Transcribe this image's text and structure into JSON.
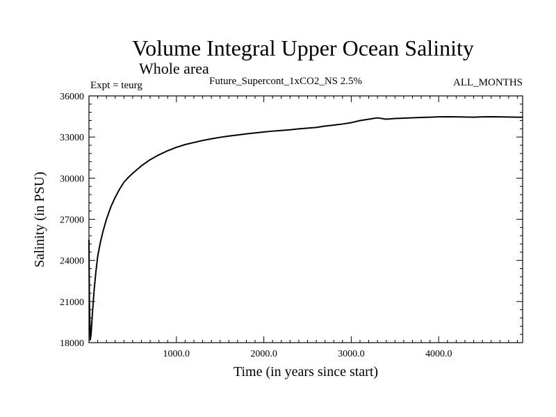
{
  "chart_data": {
    "type": "line",
    "title": "Volume Integral Upper Ocean Salinity",
    "subtitle": "Whole area",
    "annotations": {
      "left": "Expt = teurg",
      "center": "Future_Supercont_1xCO2_NS 2.5%",
      "right": "ALL_MONTHS"
    },
    "xlabel": "Time (in years since start)",
    "ylabel": "Salinity (in PSU)",
    "xlim": [
      0,
      4960
    ],
    "ylim": [
      18000,
      36000
    ],
    "xticks": [
      1000,
      2000,
      3000,
      4000
    ],
    "xtick_labels": [
      "1000.0",
      "2000.0",
      "3000.0",
      "4000.0"
    ],
    "yticks": [
      18000,
      21000,
      24000,
      27000,
      30000,
      33000,
      36000
    ],
    "ytick_labels": [
      "18000",
      "21000",
      "24000",
      "27000",
      "30000",
      "33000",
      "36000"
    ],
    "grid": false,
    "series": [
      {
        "color": "#000000",
        "x": [
          0,
          5,
          15,
          25,
          40,
          60,
          80,
          100,
          130,
          160,
          200,
          250,
          300,
          350,
          400,
          450,
          500,
          600,
          700,
          800,
          900,
          1000,
          1100,
          1200,
          1300,
          1400,
          1500,
          1600,
          1700,
          1800,
          1900,
          2000,
          2100,
          2200,
          2300,
          2400,
          2500,
          2600,
          2700,
          2800,
          2900,
          3000,
          3100,
          3200,
          3300,
          3400,
          3500,
          3600,
          3700,
          3800,
          3900,
          4000,
          4100,
          4200,
          4300,
          4400,
          4500,
          4600,
          4700,
          4800,
          4900,
          4960
        ],
        "y": [
          25500,
          21000,
          18200,
          18700,
          20200,
          21900,
          23200,
          24300,
          25300,
          26100,
          27000,
          27900,
          28600,
          29200,
          29700,
          30050,
          30350,
          30900,
          31350,
          31700,
          32000,
          32250,
          32450,
          32600,
          32750,
          32870,
          32980,
          33070,
          33150,
          33230,
          33300,
          33370,
          33430,
          33480,
          33530,
          33600,
          33650,
          33700,
          33800,
          33870,
          33950,
          34050,
          34200,
          34300,
          34400,
          34300,
          34350,
          34380,
          34400,
          34430,
          34450,
          34470,
          34480,
          34470,
          34460,
          34450,
          34470,
          34480,
          34470,
          34460,
          34450,
          34450
        ]
      }
    ]
  }
}
